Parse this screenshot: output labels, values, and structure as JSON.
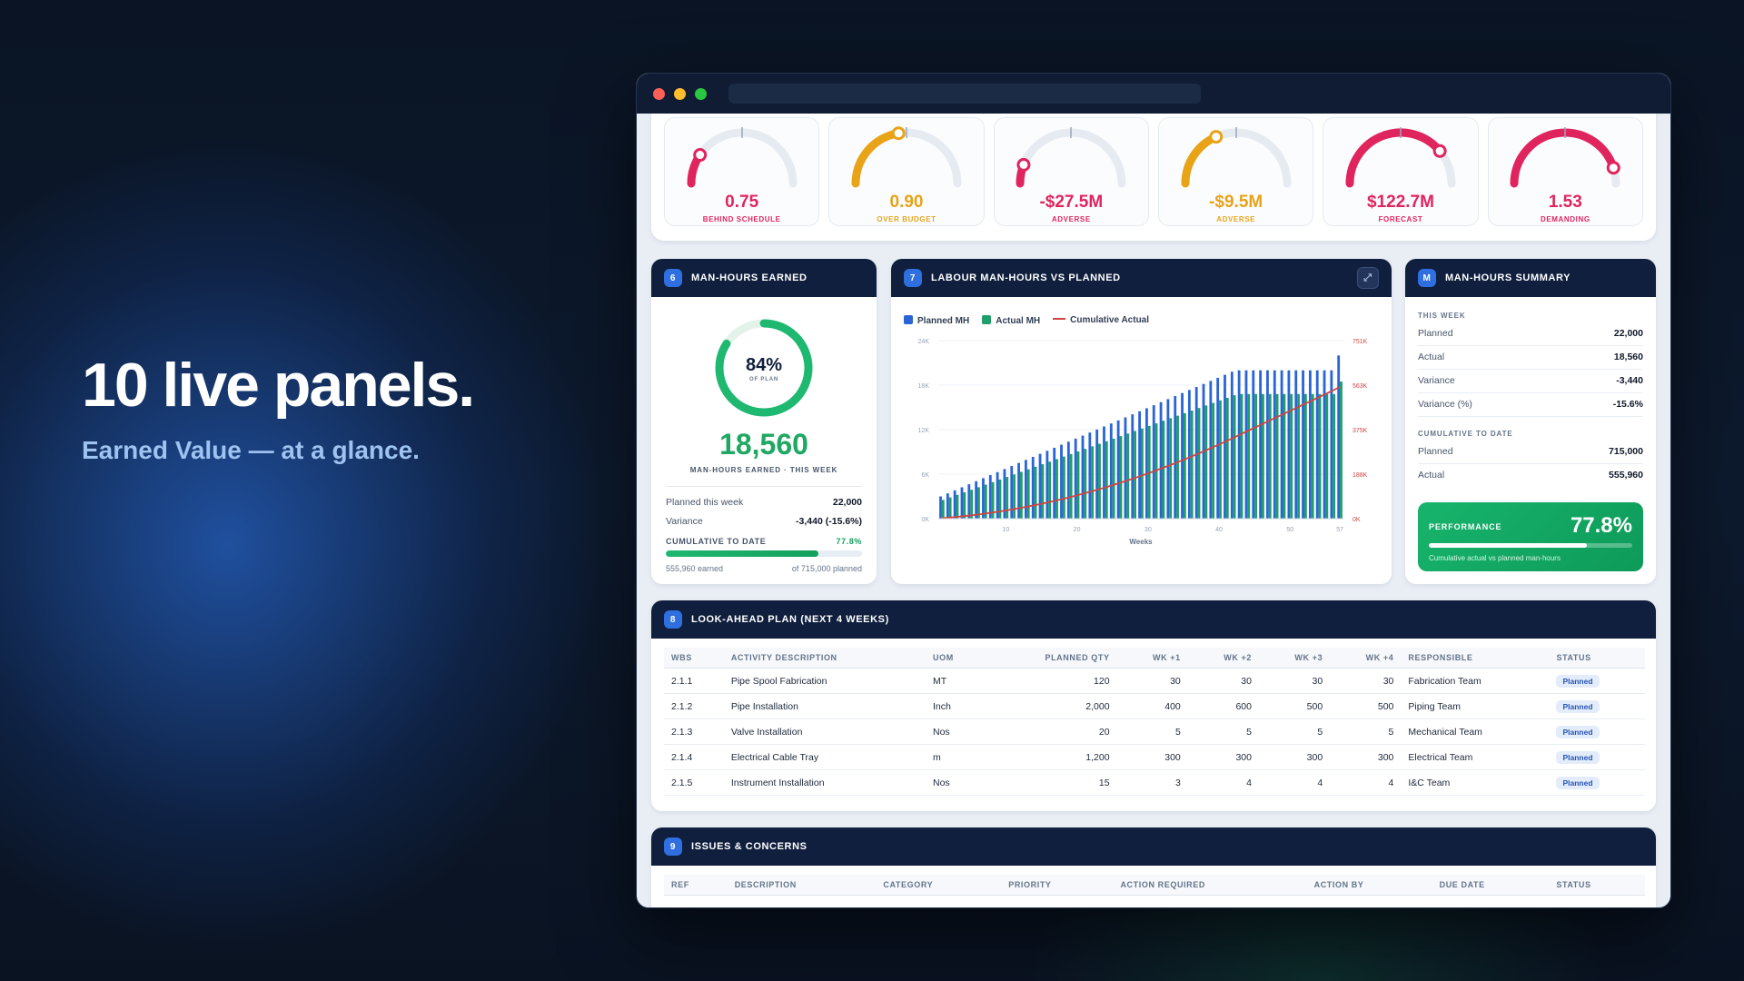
{
  "hero": {
    "title": "10 live panels.",
    "subtitle": "Earned Value — at a glance."
  },
  "gauges": [
    {
      "value": "0.75",
      "label": "BEHIND SCHEDULE",
      "color": "#e0245e",
      "level": 0.19
    },
    {
      "value": "0.90",
      "label": "OVER BUDGET",
      "color": "#e8a317",
      "level": 0.45
    },
    {
      "value": "-$27.5M",
      "label": "ADVERSE",
      "color": "#e0245e",
      "level": 0.12
    },
    {
      "value": "-$9.5M",
      "label": "ADVERSE",
      "color": "#e8a317",
      "level": 0.37
    },
    {
      "value": "$122.7M",
      "label": "FORECAST",
      "color": "#e0245e",
      "level": 0.78
    },
    {
      "value": "1.53",
      "label": "DEMANDING",
      "color": "#e0245e",
      "level": 0.9
    }
  ],
  "panel6": {
    "num": "6",
    "title": "MAN-HOURS EARNED",
    "ring_pct": "84%",
    "ring_sub": "OF PLAN",
    "ring_fraction": 0.84,
    "big_value": "18,560",
    "big_label": "MAN-HOURS EARNED · THIS WEEK",
    "planned_label": "Planned this week",
    "planned_value": "22,000",
    "variance_label": "Variance",
    "variance_value": "-3,440 (-15.6%)",
    "cum_label": "CUMULATIVE TO DATE",
    "cum_pct": "77.8%",
    "cum_fraction": 0.778,
    "earned_foot": "555,960 earned",
    "planned_foot": "of 715,000 planned"
  },
  "panel7": {
    "num": "7",
    "title": "LABOUR MAN-HOURS VS PLANNED",
    "expand_icon": "⤢"
  },
  "chart_data": {
    "type": "bar",
    "legend": [
      "Planned MH",
      "Actual MH",
      "Cumulative Actual"
    ],
    "xlabel": "Weeks",
    "x_ticks": [
      "10",
      "20",
      "30",
      "40",
      "50",
      "57"
    ],
    "y_left_ticks": [
      "0K",
      "6K",
      "12K",
      "18K",
      "24K"
    ],
    "y_right_ticks": [
      "0K",
      "188K",
      "375K",
      "563K",
      "751K"
    ],
    "ylim": [
      0,
      24000
    ],
    "y2lim": [
      0,
      751000
    ],
    "weeks": 57,
    "colors": {
      "planned": "#2a64d6",
      "actual": "#1f9e6a",
      "cumulative": "#d04444"
    },
    "planned_start": 3000,
    "planned_end": 20000,
    "actual_ratio": 0.84,
    "cumulative_end": 555960,
    "final_planned_spike": 22000
  },
  "panelM": {
    "num": "M",
    "title": "MAN-HOURS SUMMARY",
    "week_label": "THIS WEEK",
    "week_rows": [
      {
        "k": "Planned",
        "v": "22,000"
      },
      {
        "k": "Actual",
        "v": "18,560"
      },
      {
        "k": "Variance",
        "v": "-3,440"
      },
      {
        "k": "Variance (%)",
        "v": "-15.6%"
      }
    ],
    "cum_label": "CUMULATIVE TO DATE",
    "cum_rows": [
      {
        "k": "Planned",
        "v": "715,000"
      },
      {
        "k": "Actual",
        "v": "555,960"
      }
    ],
    "perf_label": "PERFORMANCE",
    "perf_value": "77.8%",
    "perf_fraction": 0.778,
    "perf_caption": "Cumulative actual vs planned man-hours"
  },
  "panel8": {
    "num": "8",
    "title": "LOOK-AHEAD PLAN (NEXT 4 WEEKS)",
    "columns": [
      "WBS",
      "ACTIVITY DESCRIPTION",
      "UOM",
      "PLANNED QTY",
      "WK +1",
      "WK +2",
      "WK +3",
      "WK +4",
      "RESPONSIBLE",
      "STATUS"
    ],
    "rows": [
      [
        "2.1.1",
        "Pipe Spool Fabrication",
        "MT",
        "120",
        "30",
        "30",
        "30",
        "30",
        "Fabrication Team",
        "Planned"
      ],
      [
        "2.1.2",
        "Pipe Installation",
        "Inch",
        "2,000",
        "400",
        "600",
        "500",
        "500",
        "Piping Team",
        "Planned"
      ],
      [
        "2.1.3",
        "Valve Installation",
        "Nos",
        "20",
        "5",
        "5",
        "5",
        "5",
        "Mechanical Team",
        "Planned"
      ],
      [
        "2.1.4",
        "Electrical Cable Tray",
        "m",
        "1,200",
        "300",
        "300",
        "300",
        "300",
        "Electrical Team",
        "Planned"
      ],
      [
        "2.1.5",
        "Instrument Installation",
        "Nos",
        "15",
        "3",
        "4",
        "4",
        "4",
        "I&C Team",
        "Planned"
      ]
    ]
  },
  "panel9": {
    "num": "9",
    "title": "ISSUES & CONCERNS",
    "columns": [
      "REF",
      "DESCRIPTION",
      "CATEGORY",
      "PRIORITY",
      "ACTION REQUIRED",
      "ACTION BY",
      "DUE DATE",
      "STATUS"
    ]
  }
}
